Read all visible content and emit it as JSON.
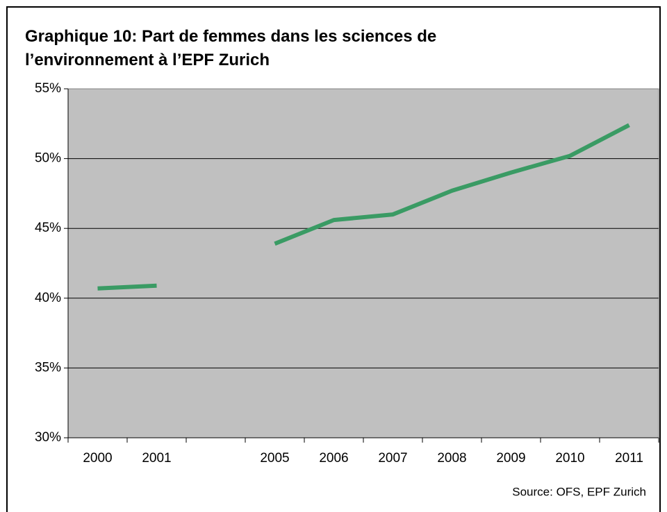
{
  "chart_data": {
    "type": "line",
    "title": "Graphique 10: Part de femmes dans les sciences de l’environnement à l’EPF Zurich",
    "source": "Source: OFS, EPF Zurich",
    "categories": [
      "2000",
      "2001",
      null,
      "2005",
      "2006",
      "2007",
      "2008",
      "2009",
      "2010",
      "2011"
    ],
    "series": [
      {
        "color": "#3a9b64",
        "values": [
          40.7,
          40.9,
          null,
          43.9,
          45.6,
          46.0,
          47.7,
          49.0,
          50.2,
          52.4
        ]
      }
    ],
    "ylim": [
      30,
      55
    ],
    "yticks": [
      {
        "value": 30,
        "label": "30%"
      },
      {
        "value": 35,
        "label": "35%"
      },
      {
        "value": 40,
        "label": "40%"
      },
      {
        "value": 45,
        "label": "45%"
      },
      {
        "value": 50,
        "label": "50%"
      },
      {
        "value": 55,
        "label": "55%"
      }
    ],
    "grid": true
  }
}
